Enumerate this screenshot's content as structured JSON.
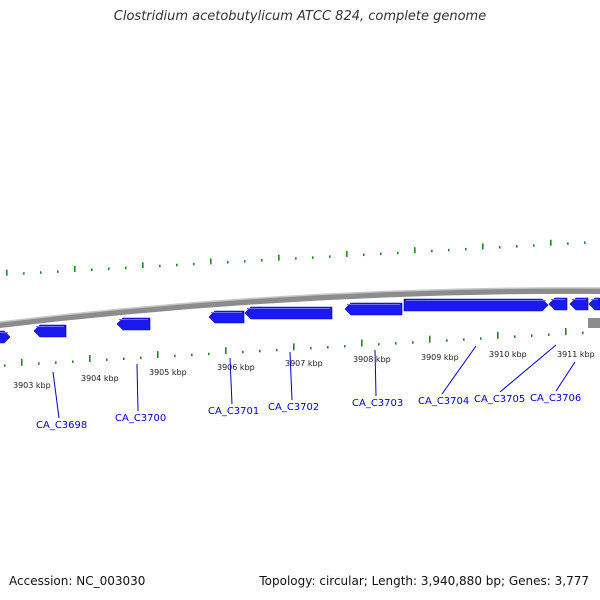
{
  "title": "Clostridium acetobutylicum ATCC 824, complete genome",
  "footer": {
    "accession": "Accession: NC_003030",
    "stats": "Topology: circular; Length: 3,940,880 bp; Genes: 3,777"
  },
  "colors": {
    "gene_fill": "#1a1aee",
    "gene_label": "#0000cc",
    "gc_ticks": "#228822",
    "backbone": "#8c8c8c",
    "title_text": "#333333"
  },
  "ruler_labels": [
    "3903 kbp",
    "3904 kbp",
    "3905 kbp",
    "3906 kbp",
    "3907 kbp",
    "3908 kbp",
    "3909 kbp",
    "3910 kbp",
    "3911 kbp"
  ],
  "genes": [
    {
      "label": "CA_C3698"
    },
    {
      "label": "CA_C3700"
    },
    {
      "label": "CA_C3701"
    },
    {
      "label": "CA_C3702"
    },
    {
      "label": "CA_C3703"
    },
    {
      "label": "CA_C3704"
    },
    {
      "label": "CA_C3705"
    },
    {
      "label": "CA_C3706"
    }
  ]
}
